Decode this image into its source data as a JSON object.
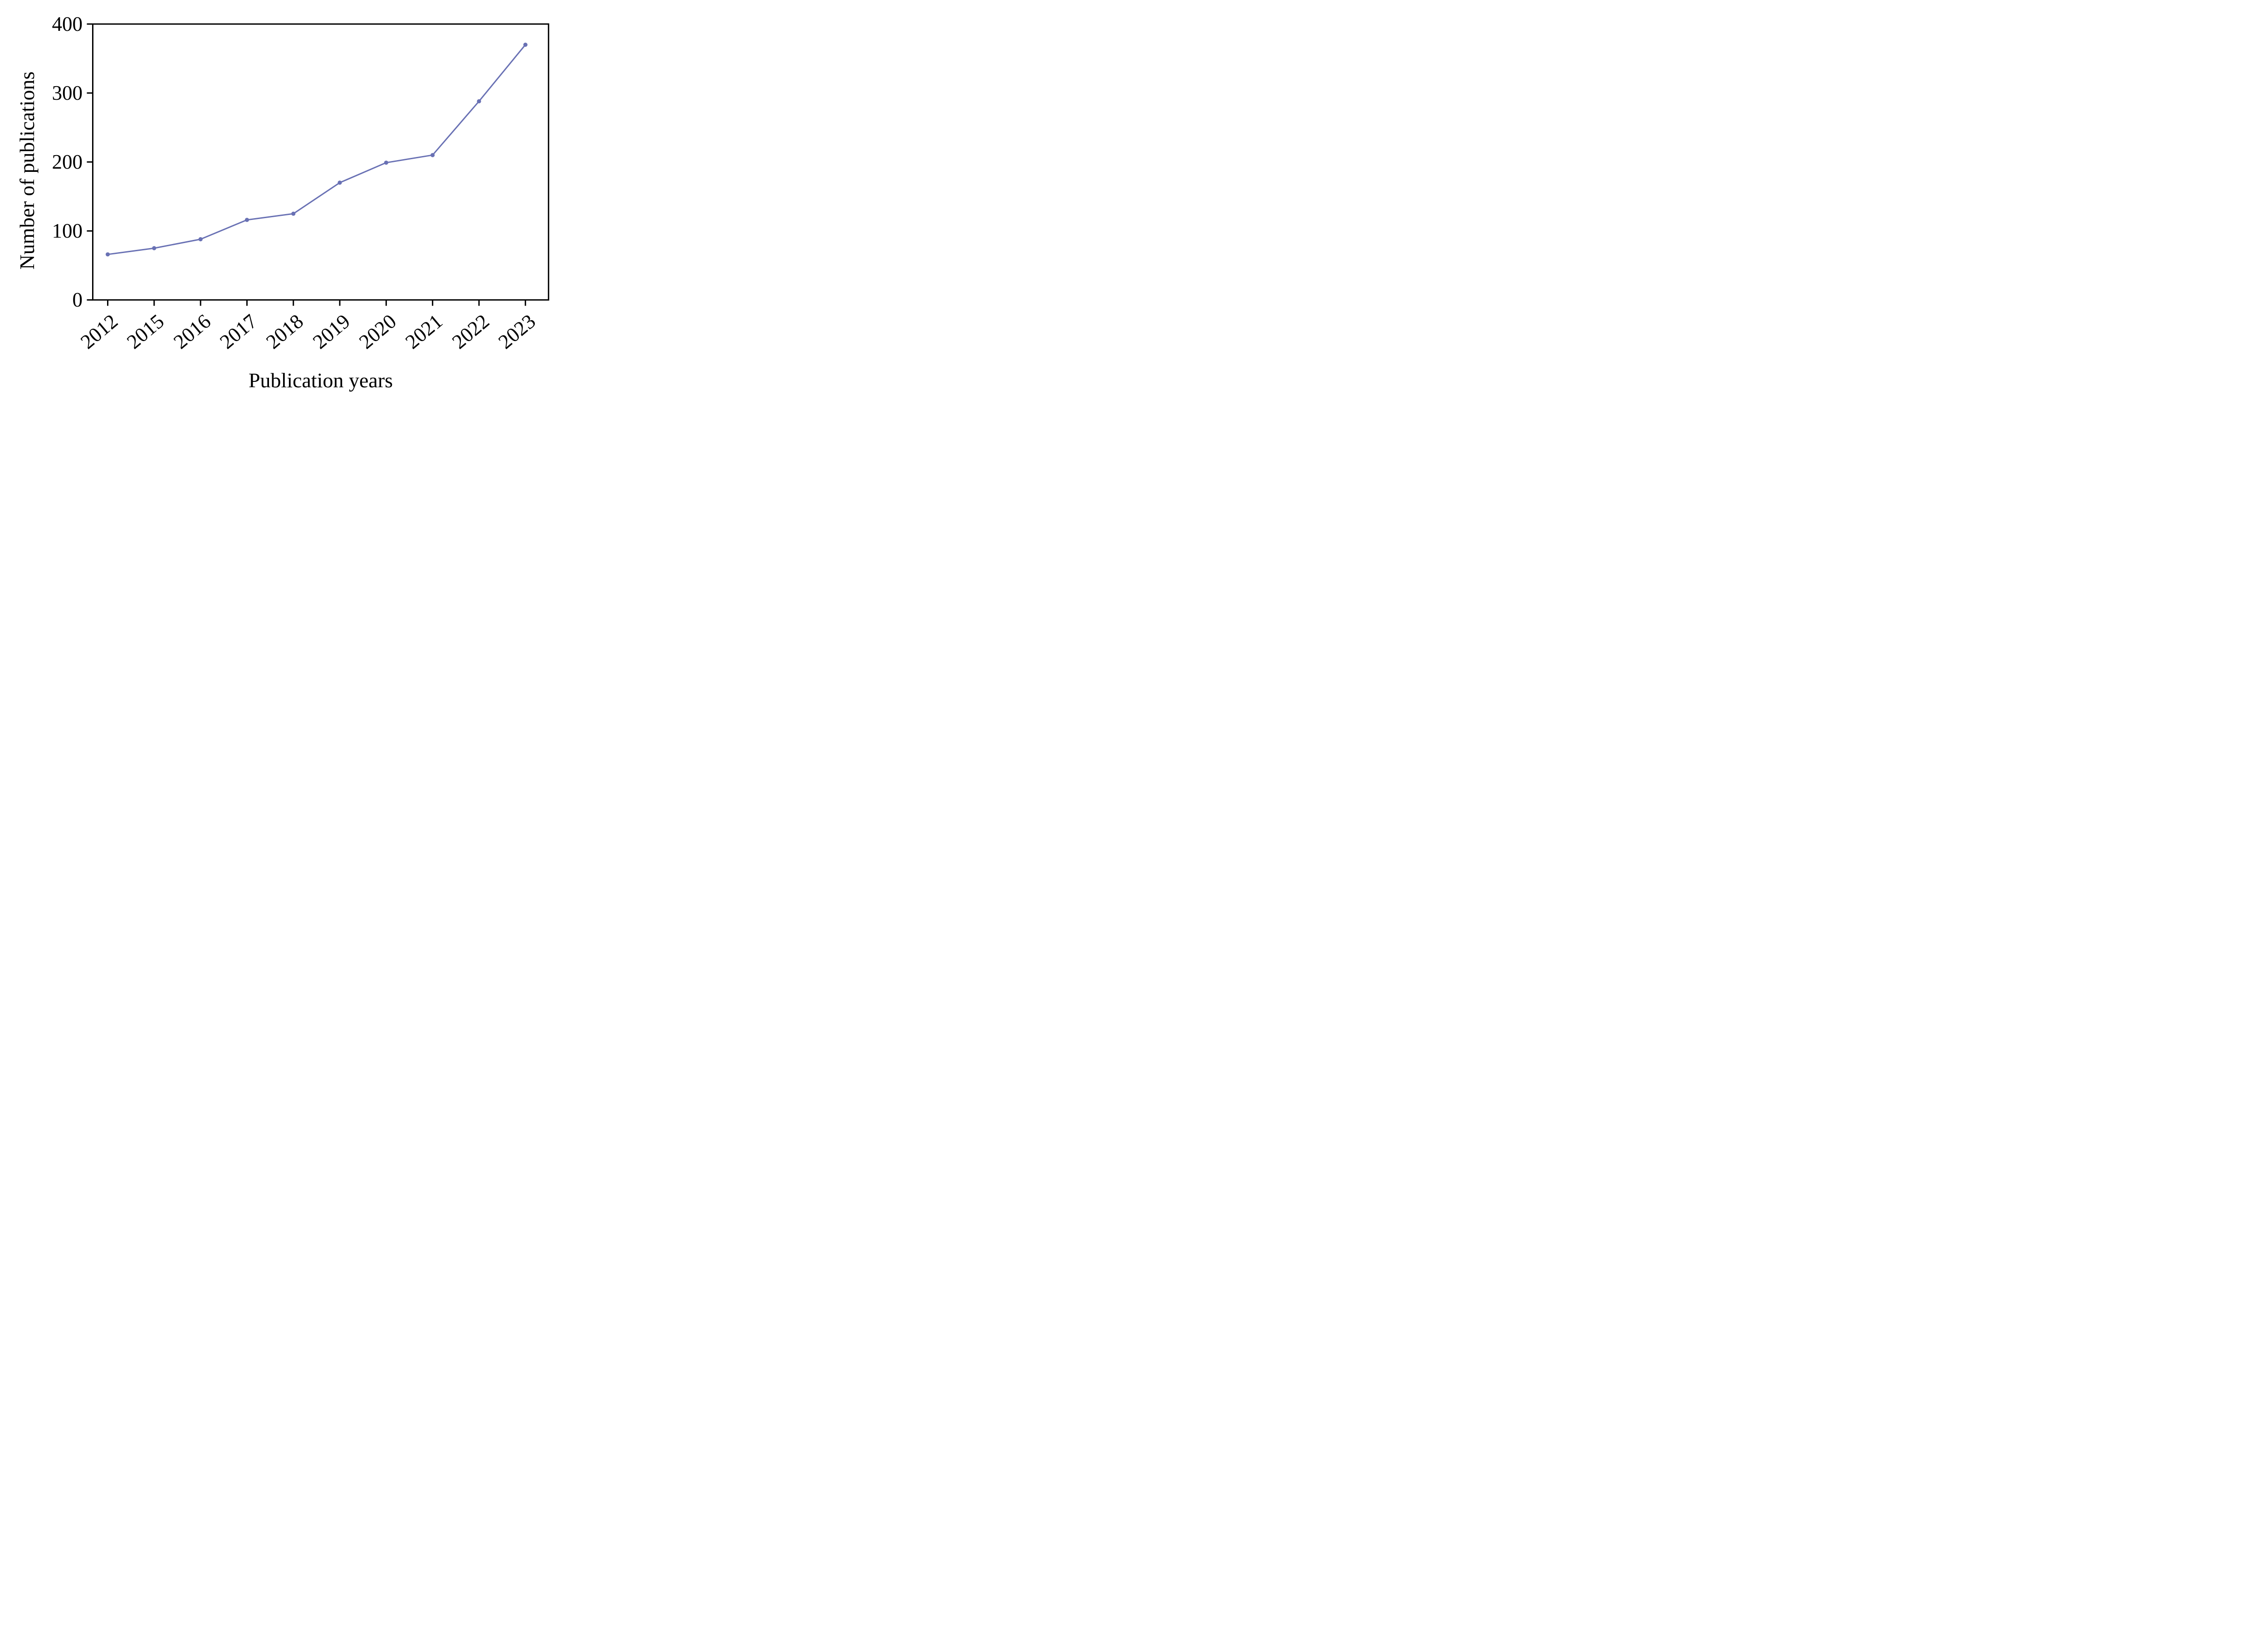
{
  "chart_data": {
    "type": "line",
    "title": "",
    "xlabel": "Publication years",
    "ylabel": "Number of publications",
    "categories": [
      "2012",
      "2015",
      "2016",
      "2017",
      "2018",
      "2019",
      "2020",
      "2021",
      "2022",
      "2023"
    ],
    "series": [
      {
        "name": "Number of publications",
        "values": [
          66,
          75,
          88,
          116,
          125,
          170,
          199,
          210,
          288,
          370
        ]
      }
    ],
    "yticks": [
      0,
      100,
      200,
      300,
      400
    ],
    "ylim": [
      0,
      400
    ],
    "grid": false,
    "legend_position": "none",
    "line_color": "#6971b4",
    "marker": "circle",
    "marker_color": "#6971b4",
    "axis_color": "#000000",
    "x_tick_label_rotation_deg": 40
  }
}
